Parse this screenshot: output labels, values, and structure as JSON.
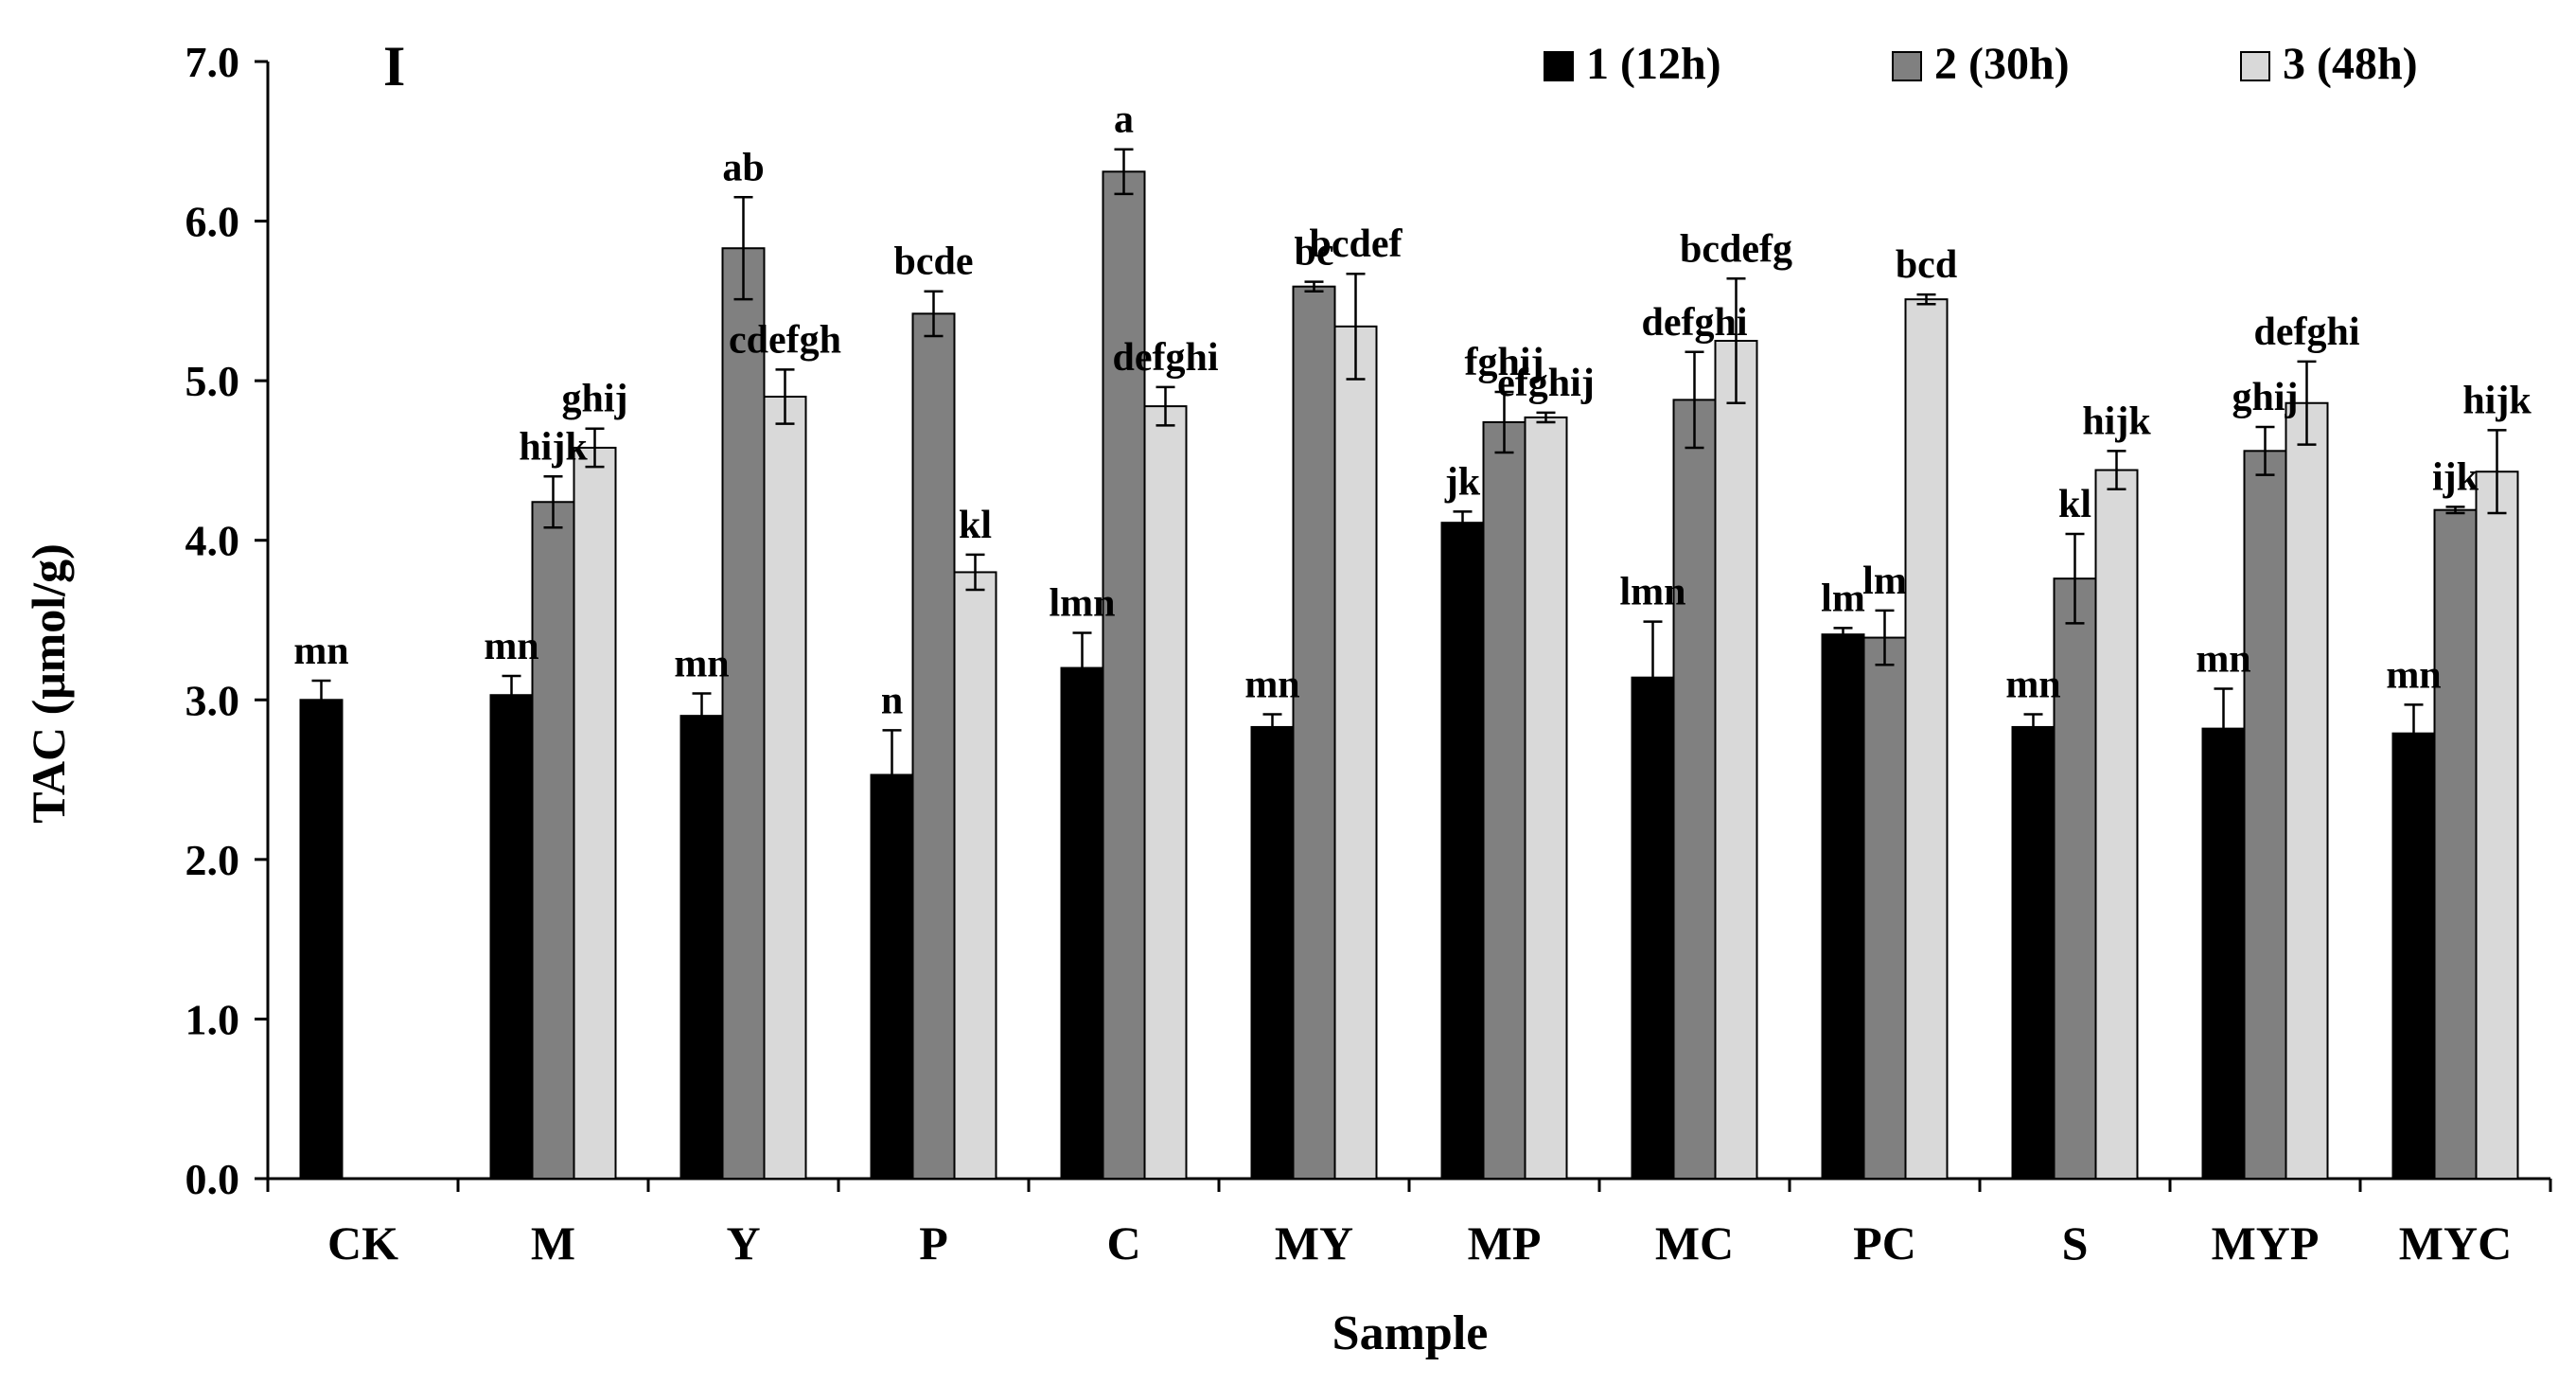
{
  "chart_data": {
    "type": "bar",
    "panel_label": "I",
    "title": "",
    "xlabel": "Sample",
    "ylabel": "TAC (μmol/g)",
    "ylim": [
      0,
      7
    ],
    "y_ticks": [
      "0.0",
      "1.0",
      "2.0",
      "3.0",
      "4.0",
      "5.0",
      "6.0",
      "7.0"
    ],
    "categories": [
      "CK",
      "M",
      "Y",
      "P",
      "C",
      "MY",
      "MP",
      "MC",
      "PC",
      "S",
      "MYP",
      "MYC"
    ],
    "legend_position": "top-right",
    "series": [
      {
        "name": "1 (12h)",
        "color": "#000000",
        "values": [
          3.0,
          3.03,
          2.9,
          2.53,
          3.2,
          2.83,
          4.11,
          3.14,
          3.41,
          2.83,
          2.82,
          2.79
        ],
        "errors": [
          0.12,
          0.12,
          0.14,
          0.28,
          0.22,
          0.08,
          0.07,
          0.35,
          0.04,
          0.08,
          0.25,
          0.18
        ],
        "labels": [
          "mn",
          "mn",
          "mn",
          "n",
          "lmn",
          "mn",
          "jk",
          "lmn",
          "lm",
          "mn",
          "mn",
          "mn"
        ]
      },
      {
        "name": "2 (30h)",
        "color": "#808080",
        "values": [
          null,
          4.24,
          5.83,
          5.42,
          6.31,
          5.59,
          4.74,
          4.88,
          3.39,
          3.76,
          4.56,
          4.19
        ],
        "errors": [
          null,
          0.16,
          0.32,
          0.14,
          0.14,
          0.03,
          0.19,
          0.3,
          0.17,
          0.28,
          0.15,
          0.02
        ],
        "labels": [
          null,
          "hijk",
          "ab",
          "bcde",
          "a",
          "bc",
          "fghij",
          "defghi",
          "lm",
          "kl",
          "ghij",
          "ijk"
        ]
      },
      {
        "name": "3 (48h)",
        "color": "#d9d9d9",
        "values": [
          null,
          4.58,
          4.9,
          3.8,
          4.84,
          5.34,
          4.77,
          5.25,
          5.51,
          4.44,
          4.86,
          4.43
        ],
        "errors": [
          null,
          0.12,
          0.17,
          0.11,
          0.12,
          0.33,
          0.03,
          0.39,
          0.03,
          0.12,
          0.26,
          0.26
        ],
        "labels": [
          null,
          "ghij",
          "cdefgh",
          "kl",
          "defghi",
          "bcdef",
          "efghij",
          "bcdefg",
          "bcd",
          "hijk",
          "defghi",
          "hijk"
        ]
      }
    ]
  }
}
